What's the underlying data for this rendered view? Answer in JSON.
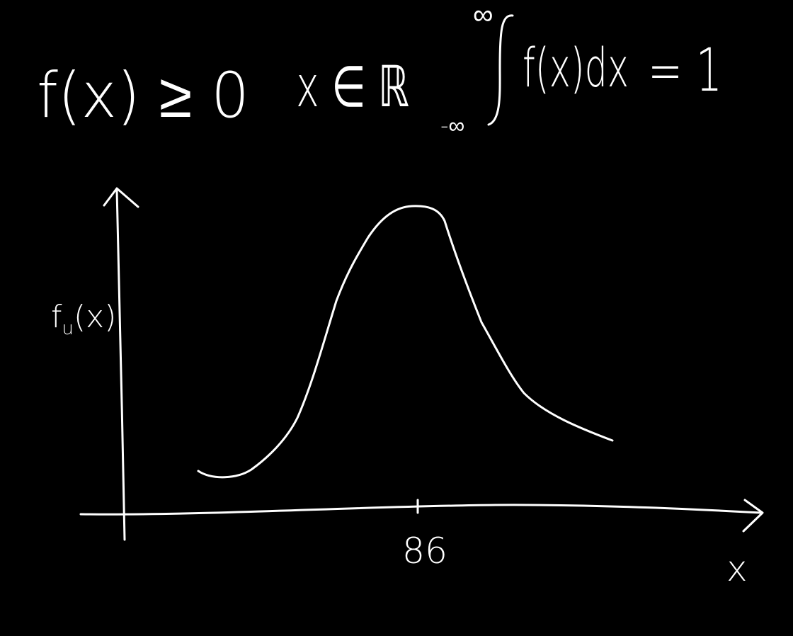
{
  "board": {
    "background": "#000000",
    "ink": "#ffffff"
  },
  "formulas": {
    "nonnegativity": "f(x) ≥ 0",
    "domain": "x ∈ ℝ",
    "normalization": {
      "upper_limit": "∞",
      "lower_limit": "-∞",
      "integrand": "f(x)dx",
      "equals": "= 1"
    }
  },
  "plot": {
    "y_label": "f",
    "y_label_sub": "u",
    "y_label_arg": "(x)",
    "x_label": "x",
    "x_tick_label": "86"
  }
}
